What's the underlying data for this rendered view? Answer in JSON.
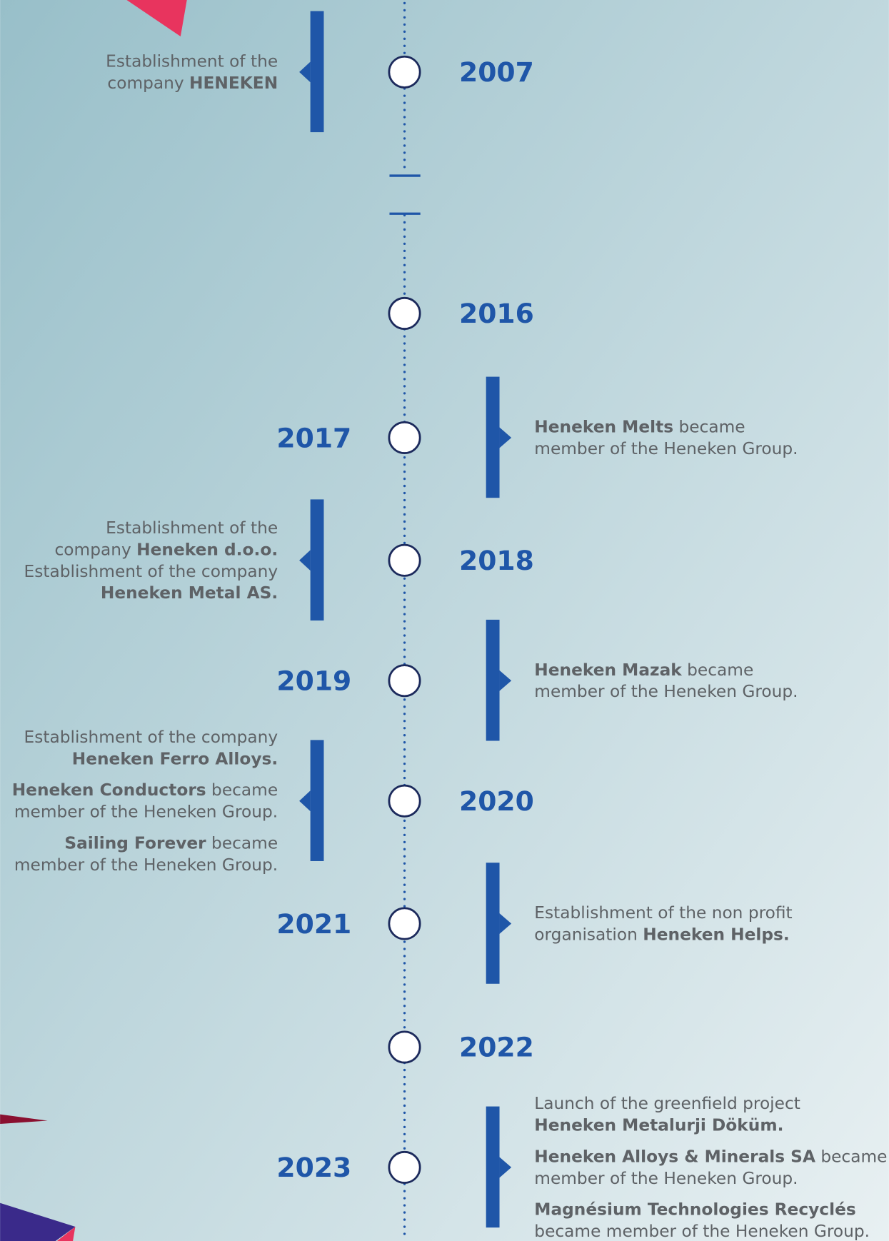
{
  "events": [
    {
      "year": "2007",
      "notes": [
        [
          [
            {
              "text": "Establishment of the"
            }
          ],
          [
            {
              "text": "company "
            },
            {
              "text": "HENEKEN",
              "bold": true
            }
          ]
        ]
      ]
    },
    {
      "year": "2016"
    },
    {
      "year": "2017",
      "notes": [
        [
          [
            {
              "text": "Heneken Melts",
              "bold": true
            },
            {
              "text": " became"
            }
          ],
          [
            {
              "text": "member of the Heneken Group."
            }
          ]
        ]
      ]
    },
    {
      "year": "2018",
      "notes": [
        [
          [
            {
              "text": "Establishment of the"
            }
          ],
          [
            {
              "text": "company "
            },
            {
              "text": "Heneken d.o.o.",
              "bold": true
            }
          ],
          [
            {
              "text": "Establishment of the company"
            }
          ],
          [
            {
              "text": "Heneken Metal AS.",
              "bold": true
            }
          ]
        ]
      ]
    },
    {
      "year": "2019",
      "notes": [
        [
          [
            {
              "text": "Heneken Mazak",
              "bold": true
            },
            {
              "text": " became"
            }
          ],
          [
            {
              "text": "member of the Heneken Group."
            }
          ]
        ]
      ]
    },
    {
      "year": "2020",
      "notes": [
        [
          [
            {
              "text": "Establishment of the company"
            }
          ],
          [
            {
              "text": "Heneken Ferro Alloys.",
              "bold": true
            }
          ]
        ],
        [
          [
            {
              "text": "Heneken Conductors",
              "bold": true
            },
            {
              "text": " became"
            }
          ],
          [
            {
              "text": "member of the Heneken Group."
            }
          ]
        ],
        [
          [
            {
              "text": "Sailing Forever",
              "bold": true
            },
            {
              "text": " became"
            }
          ],
          [
            {
              "text": "member of the Heneken Group."
            }
          ]
        ]
      ]
    },
    {
      "year": "2021",
      "notes": [
        [
          [
            {
              "text": "Establishment of the non profit"
            }
          ],
          [
            {
              "text": "organisation "
            },
            {
              "text": "Heneken Helps.",
              "bold": true
            }
          ]
        ]
      ]
    },
    {
      "year": "2022"
    },
    {
      "year": "2023",
      "notes": [
        [
          [
            {
              "text": "Launch of the greenfield project"
            }
          ],
          [
            {
              "text": "Heneken Metalurji Döküm.",
              "bold": true
            }
          ]
        ],
        [
          [
            {
              "text": "Heneken Alloys & Minerals SA",
              "bold": true
            },
            {
              "text": " became"
            }
          ],
          [
            {
              "text": "member of the Heneken Group."
            }
          ]
        ],
        [
          [
            {
              "text": "Magnésium Technologies Recyclés",
              "bold": true
            }
          ],
          [
            {
              "text": "became member of the Heneken Group."
            }
          ]
        ]
      ]
    }
  ]
}
